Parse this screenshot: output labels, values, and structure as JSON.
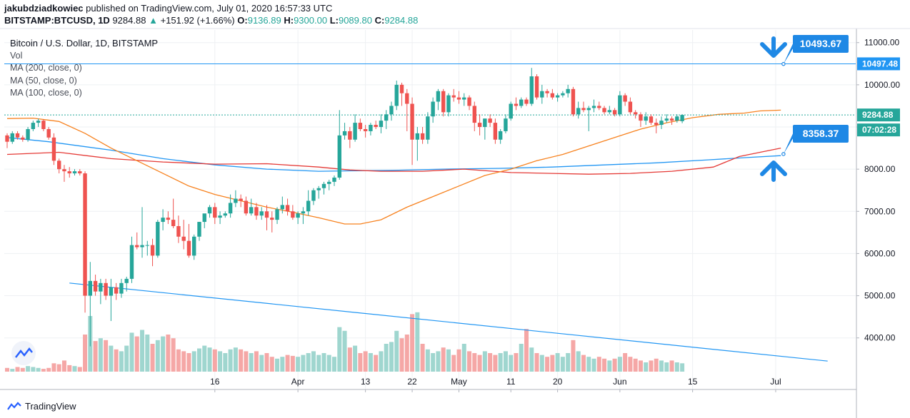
{
  "header": {
    "author": "jakubdziadkowiec",
    "published_text": "published on TradingView.com, July 01, 2020 16:57:33 UTC",
    "symbol": "BITSTAMP:BTCUSD, 1D",
    "last": "9284.88",
    "change_arrow": "▲",
    "change": "+151.92 (+1.66%)",
    "o_label": "O:",
    "o_value": "9136.89",
    "h_label": "H:",
    "h_value": "9300.00",
    "l_label": "L:",
    "l_value": "9089.80",
    "c_label": "C:",
    "c_value": "9284.88"
  },
  "legend": {
    "title": "Bitcoin / U.S. Dollar, 1D, BITSTAMP",
    "vol": "Vol",
    "ma200": "MA (200, close, 0)",
    "ma50": "MA (50, close, 0)",
    "ma100": "MA (100, close, 0)"
  },
  "footer": {
    "brand": "TradingView"
  },
  "colors": {
    "up": "#26a69a",
    "down": "#ef5350",
    "up_vol": "#9fd6cf",
    "down_vol": "#f5a7a6",
    "ma200": "#2196f3",
    "ma50": "#f7821f",
    "ma100": "#e53935",
    "trend": "#2196f3",
    "arrow": "#1e88e5",
    "grid": "#eef0f3"
  },
  "chart_data": {
    "type": "candlestick",
    "title": "Bitcoin / U.S. Dollar, 1D, BITSTAMP",
    "ylim": [
      3200,
      11300
    ],
    "yticks": [
      4000,
      5000,
      6000,
      7000,
      8000,
      9000,
      10000,
      11000
    ],
    "ytick_labels": [
      "4000.00",
      "5000.00",
      "6000.00",
      "7000.00",
      "8000.00",
      "9000.00",
      "10000.00",
      "11000.00"
    ],
    "xticks": [
      {
        "label": "16",
        "index": 40
      },
      {
        "label": "Apr",
        "index": 56
      },
      {
        "label": "13",
        "index": 69
      },
      {
        "label": "22",
        "index": 78
      },
      {
        "label": "May",
        "index": 87
      },
      {
        "label": "11",
        "index": 97
      },
      {
        "label": "20",
        "index": 106
      },
      {
        "label": "Jun",
        "index": 118
      },
      {
        "label": "15",
        "index": 132
      },
      {
        "label": "Jul",
        "index": 148
      }
    ],
    "candles": [
      [
        8800,
        8850,
        8500,
        8650
      ],
      [
        8650,
        8900,
        8600,
        8850
      ],
      [
        8850,
        8900,
        8700,
        8750
      ],
      [
        8750,
        8800,
        8650,
        8700
      ],
      [
        8700,
        9000,
        8650,
        8950
      ],
      [
        8950,
        9150,
        8900,
        9100
      ],
      [
        9100,
        9200,
        9000,
        9150
      ],
      [
        9150,
        9180,
        8900,
        8950
      ],
      [
        8950,
        9000,
        8700,
        8750
      ],
      [
        8750,
        8850,
        8100,
        8200
      ],
      [
        8200,
        8250,
        7900,
        8000
      ],
      [
        8000,
        8100,
        7700,
        7950
      ],
      [
        7950,
        8050,
        7800,
        7900
      ],
      [
        7900,
        8000,
        7850,
        7950
      ],
      [
        7950,
        8000,
        7850,
        7900
      ],
      [
        7900,
        7950,
        4600,
        5000
      ],
      [
        5000,
        5800,
        3800,
        5350
      ],
      [
        5350,
        5500,
        5000,
        5100
      ],
      [
        5100,
        5400,
        4800,
        5300
      ],
      [
        5300,
        5400,
        4900,
        5000
      ],
      [
        5000,
        5400,
        4400,
        5200
      ],
      [
        5200,
        5300,
        4900,
        5050
      ],
      [
        5050,
        5400,
        4950,
        5300
      ],
      [
        5300,
        5450,
        5100,
        5400
      ],
      [
        5400,
        6400,
        5300,
        6200
      ],
      [
        6200,
        6500,
        6100,
        6150
      ],
      [
        6150,
        7100,
        5900,
        6200
      ],
      [
        6200,
        6300,
        5950,
        6200
      ],
      [
        6200,
        6350,
        5700,
        5950
      ],
      [
        5950,
        6800,
        5900,
        6750
      ],
      [
        6750,
        7050,
        6550,
        6850
      ],
      [
        6850,
        7000,
        6700,
        6800
      ],
      [
        6800,
        7300,
        6600,
        6650
      ],
      [
        6650,
        6900,
        6250,
        6400
      ],
      [
        6400,
        6800,
        6100,
        6300
      ],
      [
        6300,
        6700,
        5900,
        5950
      ],
      [
        5950,
        6450,
        5850,
        6400
      ],
      [
        6400,
        6750,
        6300,
        6750
      ],
      [
        6750,
        6900,
        6600,
        6950
      ],
      [
        6950,
        7150,
        6850,
        7100
      ],
      [
        7100,
        7200,
        6700,
        6850
      ],
      [
        6850,
        7000,
        6700,
        6900
      ],
      [
        6900,
        7000,
        6850,
        6950
      ],
      [
        6950,
        7400,
        6850,
        7200
      ],
      [
        7200,
        7500,
        7100,
        7300
      ],
      [
        7300,
        7400,
        7100,
        7250
      ],
      [
        7250,
        7350,
        6900,
        6950
      ],
      [
        6950,
        7300,
        6900,
        7100
      ],
      [
        7100,
        7200,
        6800,
        6900
      ],
      [
        6900,
        7100,
        6800,
        7000
      ],
      [
        7000,
        7150,
        6550,
        6850
      ],
      [
        6850,
        7000,
        6500,
        6800
      ],
      [
        6800,
        7100,
        6700,
        7050
      ],
      [
        7050,
        7350,
        6950,
        7150
      ],
      [
        7150,
        7300,
        6900,
        7000
      ],
      [
        7000,
        7150,
        6800,
        6850
      ],
      [
        6850,
        7000,
        6700,
        6950
      ],
      [
        6950,
        7100,
        6700,
        7000
      ],
      [
        7000,
        7500,
        6900,
        7250
      ],
      [
        7250,
        7550,
        7150,
        7500
      ],
      [
        7500,
        7600,
        7300,
        7550
      ],
      [
        7550,
        7700,
        7400,
        7650
      ],
      [
        7650,
        7750,
        7500,
        7700
      ],
      [
        7700,
        7850,
        7600,
        7800
      ],
      [
        7800,
        9400,
        7750,
        8800
      ],
      [
        8800,
        9100,
        8700,
        8900
      ],
      [
        8900,
        9000,
        8500,
        8700
      ],
      [
        8700,
        9300,
        8650,
        9100
      ],
      [
        9100,
        9200,
        8900,
        8950
      ],
      [
        8950,
        9050,
        8750,
        8900
      ],
      [
        8900,
        9100,
        8800,
        9050
      ],
      [
        9050,
        9150,
        8950,
        9000
      ],
      [
        9000,
        9300,
        8850,
        9150
      ],
      [
        9150,
        9400,
        8950,
        9300
      ],
      [
        9300,
        9600,
        9150,
        9500
      ],
      [
        9500,
        10100,
        9400,
        10000
      ],
      [
        10000,
        10050,
        9500,
        9800
      ],
      [
        9800,
        9900,
        8900,
        9550
      ],
      [
        9550,
        9700,
        8100,
        8700
      ],
      [
        8700,
        9000,
        8200,
        8850
      ],
      [
        8850,
        9000,
        8600,
        8700
      ],
      [
        8700,
        9350,
        8600,
        9250
      ],
      [
        9250,
        9700,
        9100,
        9600
      ],
      [
        9600,
        9900,
        9400,
        9850
      ],
      [
        9850,
        9900,
        9250,
        9350
      ],
      [
        9350,
        9800,
        9250,
        9750
      ],
      [
        9750,
        9900,
        9600,
        9700
      ],
      [
        9700,
        9850,
        9550,
        9650
      ],
      [
        9650,
        9800,
        9500,
        9700
      ],
      [
        9700,
        9750,
        9400,
        9500
      ],
      [
        9500,
        9600,
        8900,
        9100
      ],
      [
        9100,
        9300,
        8800,
        9000
      ],
      [
        9000,
        9200,
        8700,
        9200
      ],
      [
        9200,
        9300,
        9000,
        9100
      ],
      [
        9100,
        9200,
        8600,
        8700
      ],
      [
        8700,
        8950,
        8600,
        8900
      ],
      [
        8900,
        9300,
        8850,
        9200
      ],
      [
        9200,
        9600,
        9150,
        9550
      ],
      [
        9550,
        9700,
        9400,
        9500
      ],
      [
        9500,
        9700,
        9450,
        9650
      ],
      [
        9650,
        9700,
        9500,
        9550
      ],
      [
        9550,
        10400,
        9500,
        10200
      ],
      [
        10200,
        10250,
        9650,
        9700
      ],
      [
        9700,
        10000,
        9550,
        9850
      ],
      [
        9850,
        9900,
        9700,
        9800
      ],
      [
        9800,
        9900,
        9650,
        9700
      ],
      [
        9700,
        9800,
        9600,
        9750
      ],
      [
        9750,
        9850,
        9700,
        9800
      ],
      [
        9800,
        10000,
        9700,
        9900
      ],
      [
        9900,
        9950,
        9250,
        9300
      ],
      [
        9300,
        9600,
        9200,
        9450
      ],
      [
        9450,
        9600,
        9350,
        9400
      ],
      [
        9400,
        9500,
        8900,
        9450
      ],
      [
        9450,
        9650,
        9350,
        9500
      ],
      [
        9500,
        9600,
        9400,
        9450
      ],
      [
        9450,
        9500,
        9300,
        9350
      ],
      [
        9350,
        9500,
        9300,
        9400
      ],
      [
        9400,
        9450,
        9250,
        9300
      ],
      [
        9300,
        9850,
        9250,
        9750
      ],
      [
        9750,
        9800,
        9500,
        9600
      ],
      [
        9600,
        9700,
        9300,
        9350
      ],
      [
        9350,
        9400,
        9200,
        9300
      ],
      [
        9300,
        9350,
        9000,
        9150
      ],
      [
        9150,
        9350,
        9050,
        9250
      ],
      [
        9250,
        9300,
        9050,
        9100
      ],
      [
        9100,
        9200,
        8850,
        9050
      ],
      [
        9050,
        9250,
        8950,
        9150
      ],
      [
        9150,
        9300,
        9100,
        9200
      ],
      [
        9200,
        9250,
        9050,
        9150
      ],
      [
        9150,
        9300,
        9100,
        9250
      ],
      [
        9136.89,
        9300,
        9089.8,
        9284.88
      ]
    ],
    "volume": [
      4,
      3,
      5,
      4,
      6,
      5,
      4,
      3,
      4,
      9,
      8,
      12,
      7,
      6,
      5,
      40,
      60,
      33,
      36,
      34,
      28,
      24,
      22,
      28,
      42,
      38,
      45,
      40,
      30,
      34,
      38,
      40,
      36,
      24,
      22,
      20,
      22,
      25,
      28,
      26,
      24,
      22,
      20,
      24,
      26,
      24,
      22,
      20,
      22,
      18,
      20,
      16,
      14,
      16,
      18,
      17,
      16,
      18,
      20,
      22,
      18,
      20,
      18,
      16,
      48,
      44,
      26,
      28,
      20,
      22,
      20,
      18,
      22,
      30,
      32,
      44,
      36,
      40,
      62,
      64,
      30,
      24,
      20,
      22,
      26,
      24,
      18,
      24,
      30,
      22,
      20,
      18,
      22,
      20,
      18,
      20,
      22,
      18,
      20,
      30,
      46,
      26,
      20,
      18,
      16,
      18,
      20,
      16,
      20,
      34,
      22,
      18,
      16,
      14,
      16,
      14,
      12,
      14,
      16,
      20,
      16,
      14,
      12,
      10,
      12,
      14,
      12,
      10,
      12,
      10,
      9,
      8
    ],
    "ma50": [
      [
        0,
        9200
      ],
      [
        5,
        9210
      ],
      [
        10,
        9130
      ],
      [
        15,
        8850
      ],
      [
        20,
        8500
      ],
      [
        25,
        8200
      ],
      [
        30,
        7900
      ],
      [
        35,
        7600
      ],
      [
        40,
        7400
      ],
      [
        45,
        7250
      ],
      [
        50,
        7100
      ],
      [
        55,
        6980
      ],
      [
        60,
        6850
      ],
      [
        65,
        6700
      ],
      [
        68,
        6700
      ],
      [
        72,
        6800
      ],
      [
        77,
        7100
      ],
      [
        82,
        7350
      ],
      [
        87,
        7600
      ],
      [
        92,
        7850
      ],
      [
        97,
        8000
      ],
      [
        102,
        8200
      ],
      [
        107,
        8350
      ],
      [
        112,
        8550
      ],
      [
        117,
        8750
      ],
      [
        122,
        8950
      ],
      [
        127,
        9100
      ],
      [
        132,
        9220
      ],
      [
        137,
        9300
      ],
      [
        142,
        9330
      ],
      [
        145,
        9380
      ],
      [
        149,
        9400
      ]
    ],
    "ma100": [
      [
        0,
        8350
      ],
      [
        10,
        8400
      ],
      [
        20,
        8250
      ],
      [
        30,
        8170
      ],
      [
        40,
        8120
      ],
      [
        50,
        8130
      ],
      [
        60,
        8050
      ],
      [
        66,
        7980
      ],
      [
        72,
        7950
      ],
      [
        80,
        7950
      ],
      [
        88,
        8000
      ],
      [
        97,
        7920
      ],
      [
        105,
        7900
      ],
      [
        112,
        7880
      ],
      [
        120,
        7900
      ],
      [
        128,
        7950
      ],
      [
        136,
        8050
      ],
      [
        141,
        8300
      ],
      [
        145,
        8400
      ],
      [
        149,
        8500
      ]
    ],
    "ma200": [
      [
        0,
        8750
      ],
      [
        8,
        8650
      ],
      [
        20,
        8450
      ],
      [
        30,
        8250
      ],
      [
        40,
        8100
      ],
      [
        50,
        8000
      ],
      [
        60,
        7950
      ],
      [
        66,
        7960
      ],
      [
        74,
        7970
      ],
      [
        84,
        8000
      ],
      [
        95,
        8020
      ],
      [
        105,
        8050
      ],
      [
        115,
        8100
      ],
      [
        125,
        8150
      ],
      [
        135,
        8220
      ],
      [
        143,
        8280
      ],
      [
        149,
        8320
      ]
    ],
    "price_line": 9284.88,
    "resistance_line": 10497.48,
    "price_label": "9284.88",
    "resistance_label": "10497.48",
    "countdown_label": "07:02:28",
    "callout_top": "10493.67",
    "callout_bottom": "8358.37",
    "callout_top_value": 10493.67,
    "callout_bottom_value": 8358.37,
    "trendline": [
      [
        12,
        5300
      ],
      [
        158,
        3450
      ]
    ]
  }
}
